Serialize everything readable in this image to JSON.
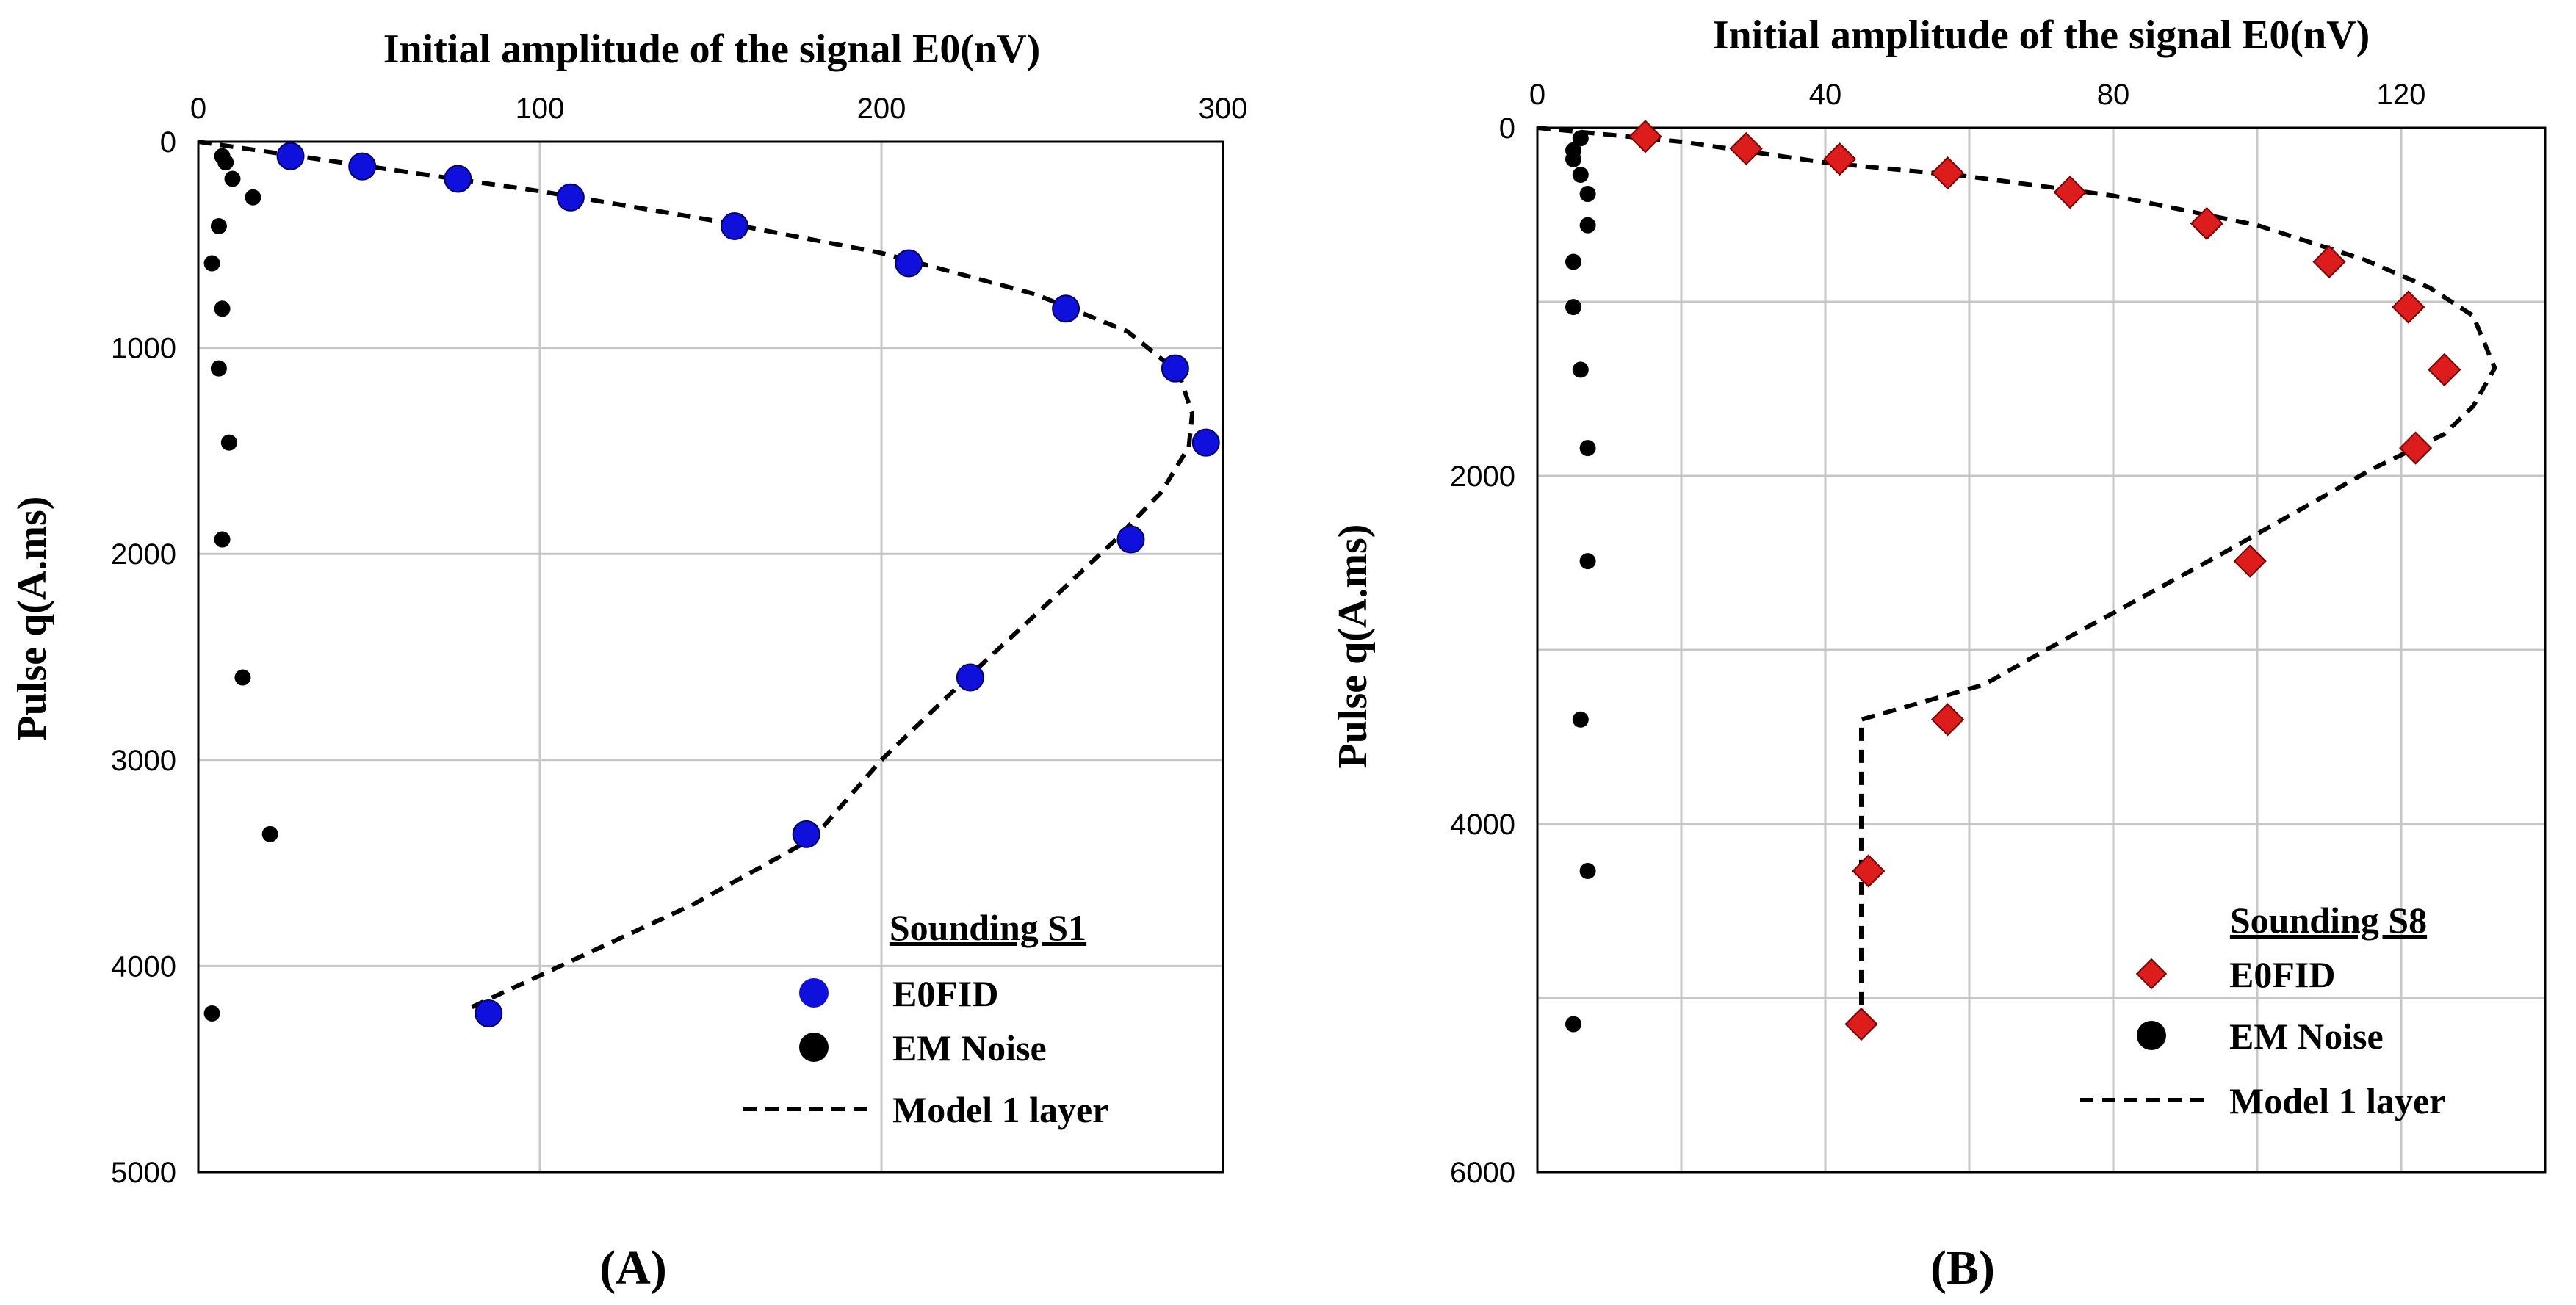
{
  "chart_data": [
    {
      "id": "A",
      "type": "scatter",
      "title": "Initial amplitude of the signal E0(nV)",
      "xlabel": "Initial amplitude of the signal E0(nV)",
      "ylabel": "Pulse q(A.ms)",
      "xlim": [
        0,
        300
      ],
      "ylim": [
        0,
        5000
      ],
      "y_inverted": true,
      "x_axis_position": "top",
      "x_ticks": [
        0,
        100,
        200,
        300
      ],
      "y_ticks": [
        0,
        1000,
        2000,
        3000,
        4000,
        5000
      ],
      "grid": true,
      "panel_label": "(A)",
      "legend": {
        "title": "Sounding S1",
        "position": "bottom-right",
        "entries": [
          "E0FID",
          "EM  Noise",
          "Model 1 layer"
        ]
      },
      "series": [
        {
          "name": "E0FID",
          "kind": "points",
          "marker": "circle",
          "color": "#1010dd",
          "points": [
            [
              27,
              70
            ],
            [
              48,
              120
            ],
            [
              76,
              180
            ],
            [
              109,
              270
            ],
            [
              157,
              410
            ],
            [
              208,
              590
            ],
            [
              254,
              810
            ],
            [
              286,
              1100
            ],
            [
              295,
              1460
            ],
            [
              273,
              1930
            ],
            [
              226,
              2600
            ],
            [
              178,
              3360
            ],
            [
              85,
              4230
            ]
          ]
        },
        {
          "name": "EM  Noise",
          "kind": "points",
          "marker": "circle",
          "color": "#000000",
          "points": [
            [
              7,
              70
            ],
            [
              8,
              100
            ],
            [
              10,
              180
            ],
            [
              16,
              270
            ],
            [
              6,
              410
            ],
            [
              4,
              590
            ],
            [
              7,
              810
            ],
            [
              6,
              1100
            ],
            [
              9,
              1460
            ],
            [
              7,
              1930
            ],
            [
              13,
              2600
            ],
            [
              21,
              3360
            ],
            [
              4,
              4230
            ]
          ]
        },
        {
          "name": "Model 1 layer",
          "kind": "line",
          "color": "#000000",
          "points": [
            [
              0,
              0
            ],
            [
              50,
              120
            ],
            [
              100,
              240
            ],
            [
              150,
              380
            ],
            [
              200,
              540
            ],
            [
              245,
              740
            ],
            [
              272,
              920
            ],
            [
              287,
              1120
            ],
            [
              291,
              1320
            ],
            [
              290,
              1480
            ],
            [
              282,
              1700
            ],
            [
              268,
              1940
            ],
            [
              248,
              2250
            ],
            [
              222,
              2650
            ],
            [
              200,
              3000
            ],
            [
              180,
              3380
            ],
            [
              145,
              3700
            ],
            [
              80,
              4200
            ]
          ]
        }
      ]
    },
    {
      "id": "B",
      "type": "scatter",
      "title": "Initial amplitude of the signal E0(nV)",
      "xlabel": "Initial amplitude of the signal E0(nV)",
      "ylabel": "Pulse q(A.ms)",
      "xlim": [
        0,
        140
      ],
      "ylim": [
        0,
        6000
      ],
      "y_inverted": true,
      "x_axis_position": "top",
      "x_ticks": [
        0,
        40,
        80,
        120
      ],
      "x_grid": [
        0,
        20,
        40,
        60,
        80,
        100,
        120,
        140
      ],
      "y_ticks": [
        0,
        2000,
        4000,
        6000
      ],
      "y_grid": [
        0,
        1000,
        2000,
        3000,
        4000,
        5000,
        6000
      ],
      "grid": true,
      "panel_label": "(B)",
      "legend": {
        "title": "Sounding S8",
        "position": "bottom-right",
        "entries": [
          "E0FID",
          "EM Noise",
          "Model 1 layer"
        ]
      },
      "series": [
        {
          "name": "E0FID",
          "kind": "points",
          "marker": "diamond",
          "color": "#dd1c1c",
          "points": [
            [
              15,
              50
            ],
            [
              29,
              120
            ],
            [
              42,
              180
            ],
            [
              57,
              260
            ],
            [
              74,
              370
            ],
            [
              93,
              550
            ],
            [
              110,
              770
            ],
            [
              121,
              1030
            ],
            [
              126,
              1390
            ],
            [
              122,
              1840
            ],
            [
              99,
              2490
            ],
            [
              57,
              3400
            ],
            [
              46,
              4270
            ],
            [
              45,
              5150
            ]
          ]
        },
        {
          "name": "EM Noise",
          "kind": "points",
          "marker": "circle",
          "color": "#000000",
          "points": [
            [
              6,
              60
            ],
            [
              5,
              130
            ],
            [
              5,
              180
            ],
            [
              6,
              270
            ],
            [
              7,
              380
            ],
            [
              7,
              560
            ],
            [
              5,
              770
            ],
            [
              5,
              1030
            ],
            [
              6,
              1390
            ],
            [
              7,
              1840
            ],
            [
              7,
              2490
            ],
            [
              6,
              3400
            ],
            [
              7,
              4270
            ],
            [
              5,
              5150
            ]
          ]
        },
        {
          "name": "Model 1 layer",
          "kind": "line",
          "color": "#000000",
          "points": [
            [
              0,
              0
            ],
            [
              20,
              80
            ],
            [
              40,
              200
            ],
            [
              60,
              280
            ],
            [
              80,
              390
            ],
            [
              100,
              560
            ],
            [
              115,
              760
            ],
            [
              124,
              920
            ],
            [
              130,
              1080
            ],
            [
              133,
              1380
            ],
            [
              130,
              1600
            ],
            [
              126,
              1760
            ],
            [
              116,
              1960
            ],
            [
              95,
              2450
            ],
            [
              75,
              2900
            ],
            [
              62,
              3200
            ],
            [
              45,
              3400
            ],
            [
              45,
              5150
            ]
          ]
        }
      ]
    }
  ]
}
